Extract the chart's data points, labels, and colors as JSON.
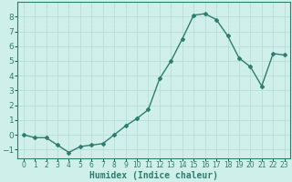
{
  "x": [
    0,
    1,
    2,
    3,
    4,
    5,
    6,
    7,
    8,
    9,
    10,
    11,
    12,
    13,
    14,
    15,
    16,
    17,
    18,
    19,
    20,
    21,
    22,
    23
  ],
  "y": [
    0.0,
    -0.2,
    -0.2,
    -0.7,
    -1.2,
    -0.8,
    -0.7,
    -0.6,
    0.0,
    0.6,
    1.1,
    1.7,
    3.8,
    5.0,
    6.5,
    8.1,
    8.2,
    7.8,
    6.7,
    5.2,
    4.6,
    3.3,
    5.5,
    5.4
  ],
  "line_color": "#2e7d6e",
  "marker": "D",
  "marker_size": 2.0,
  "line_width": 1.0,
  "bg_color": "#cff0ea",
  "grid_color_major": "#b8ddd7",
  "grid_color_minor": "#d8eeea",
  "xlabel": "Humidex (Indice chaleur)",
  "xlabel_fontsize": 7,
  "ylabel_ticks": [
    -1,
    0,
    1,
    2,
    3,
    4,
    5,
    6,
    7,
    8
  ],
  "xlim": [
    -0.5,
    23.5
  ],
  "ylim": [
    -1.6,
    9.0
  ],
  "xtick_labels": [
    "0",
    "1",
    "2",
    "3",
    "4",
    "5",
    "6",
    "7",
    "8",
    "9",
    "10",
    "11",
    "12",
    "13",
    "14",
    "15",
    "16",
    "17",
    "18",
    "19",
    "20",
    "21",
    "22",
    "23"
  ],
  "tick_fontsize": 5.5,
  "ytick_fontsize": 6.5
}
